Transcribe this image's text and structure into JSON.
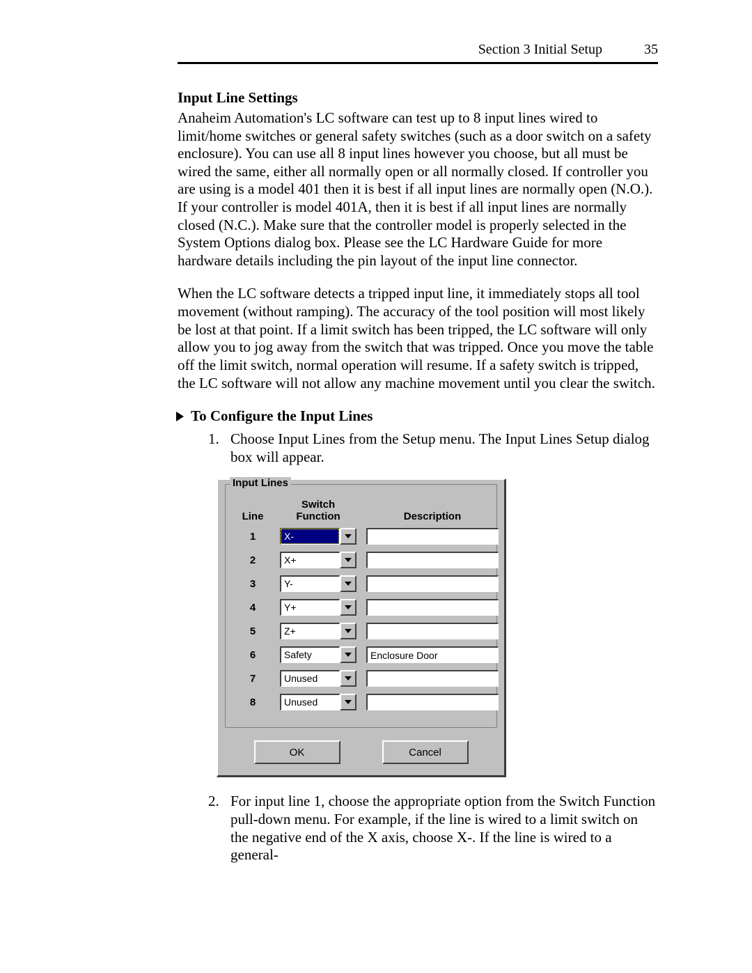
{
  "header": {
    "section": "Section 3 Initial Setup",
    "page_number": "35"
  },
  "section_title": "Input Line Settings",
  "para1": "Anaheim Automation's LC software can test up to 8 input lines wired to limit/home switches or general safety switches (such as a door switch on a safety enclosure).  You can use all 8 input lines however you choose, but all must be wired the same, either all normally open or all normally closed.  If controller you are using is a model 401 then it is best if all input lines are normally open (N.O.).  If your controller is model 401A, then it is best if all input lines are normally closed (N.C.).  Make sure that the controller model is properly selected in the System Options dialog box.  Please see the LC Hardware Guide for more hardware details including the pin layout of the input line connector.",
  "para2": "When the LC software detects a tripped input line, it immediately stops all tool movement (without ramping). The accuracy of the tool position will most likely be lost at that point.  If a limit switch has been tripped, the LC software will only allow you to jog away from the switch that was tripped.  Once you move the table off the limit switch, normal operation will resume.  If a safety switch is tripped, the LC software will not allow any machine movement until you clear the switch.",
  "subhead": "To Configure the Input Lines",
  "step1": "Choose Input Lines from the Setup menu.  The Input Lines Setup dialog box will appear.",
  "step2": "For input line 1, choose the appropriate option from the Switch Function pull-down menu.  For example, if the line is wired to a limit switch on the negative end of the X axis, choose X-.  If the line is wired to a general-",
  "dialog": {
    "group_label": "Input Lines",
    "col_line": "Line",
    "col_func": "Switch\nFunction",
    "col_desc": "Description",
    "rows": [
      {
        "n": "1",
        "func": "X-",
        "desc": "",
        "selected": true
      },
      {
        "n": "2",
        "func": "X+",
        "desc": "",
        "selected": false
      },
      {
        "n": "3",
        "func": "Y-",
        "desc": "",
        "selected": false
      },
      {
        "n": "4",
        "func": "Y+",
        "desc": "",
        "selected": false
      },
      {
        "n": "5",
        "func": "Z+",
        "desc": "",
        "selected": false
      },
      {
        "n": "6",
        "func": "Safety",
        "desc": "Enclosure Door",
        "selected": false
      },
      {
        "n": "7",
        "func": "Unused",
        "desc": "",
        "selected": false
      },
      {
        "n": "8",
        "func": "Unused",
        "desc": "",
        "selected": false
      }
    ],
    "ok_label": "OK",
    "cancel_label": "Cancel"
  }
}
